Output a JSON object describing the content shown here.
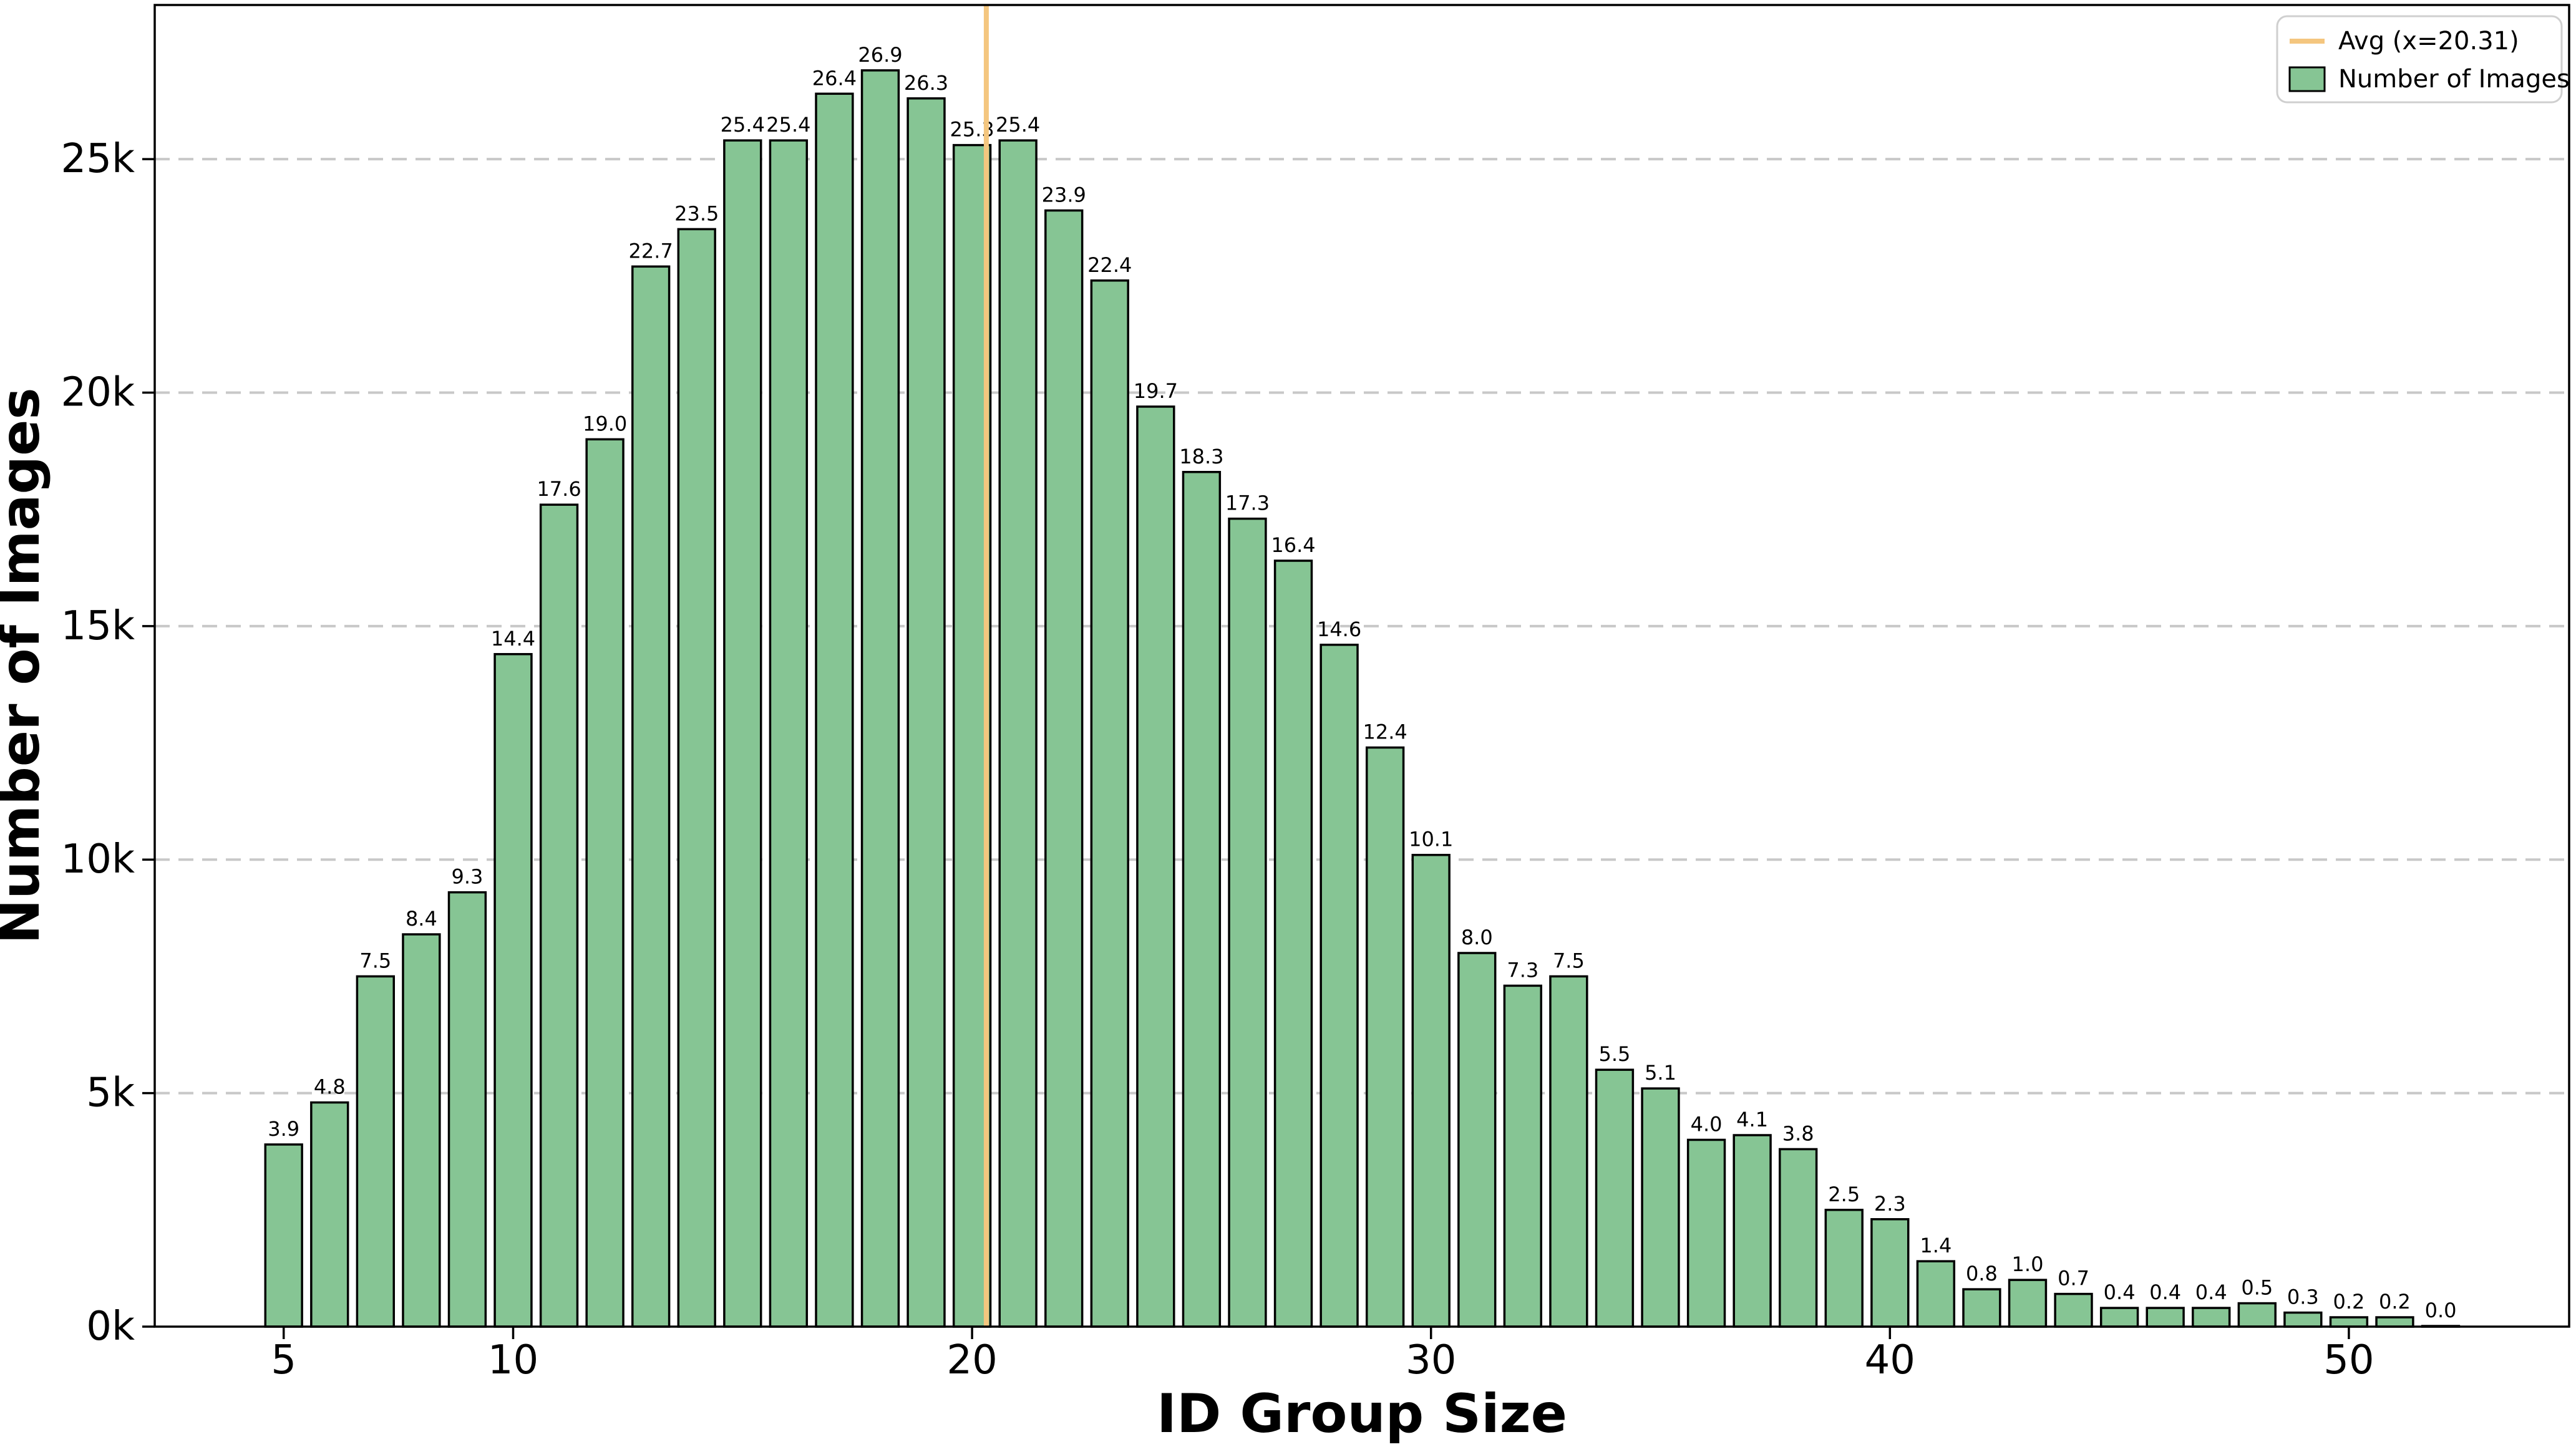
{
  "figure": {
    "background": "#ffffff",
    "colors": {
      "bar_fill": "#86c594",
      "bar_edge": "#000000",
      "avg_line": "#f4c67f",
      "grid": "#c8c8c8",
      "legend_border": "#cfcfcf",
      "text": "#000000"
    }
  },
  "chart_data": {
    "type": "bar",
    "title": "",
    "xlabel": "ID Group Size",
    "ylabel": "Number of Images",
    "x": [
      5,
      6,
      7,
      8,
      9,
      10,
      11,
      12,
      13,
      14,
      15,
      16,
      17,
      18,
      19,
      20,
      21,
      22,
      23,
      24,
      25,
      26,
      27,
      28,
      29,
      30,
      31,
      32,
      33,
      34,
      35,
      36,
      37,
      38,
      39,
      40,
      41,
      42,
      43,
      44,
      45,
      46,
      47,
      48,
      49,
      50,
      51,
      52
    ],
    "values_thousands": [
      3.9,
      4.8,
      7.5,
      8.4,
      9.3,
      14.4,
      17.6,
      19.0,
      22.7,
      23.5,
      25.4,
      25.4,
      26.4,
      26.9,
      26.3,
      25.3,
      25.4,
      23.9,
      22.4,
      19.7,
      18.3,
      17.3,
      16.4,
      14.6,
      12.4,
      10.1,
      8.0,
      7.3,
      7.5,
      5.5,
      5.1,
      4.0,
      4.1,
      3.8,
      2.5,
      2.3,
      1.4,
      0.8,
      1.0,
      0.7,
      0.4,
      0.4,
      0.4,
      0.5,
      0.3,
      0.2,
      0.2,
      0.0
    ],
    "bar_labels": [
      "3.9",
      "4.8",
      "7.5",
      "8.4",
      "9.3",
      "14.4",
      "17.6",
      "19.0",
      "22.7",
      "23.5",
      "25.4",
      "25.4",
      "26.4",
      "26.9",
      "26.3",
      "25.3",
      "25.4",
      "23.9",
      "22.4",
      "19.7",
      "18.3",
      "17.3",
      "16.4",
      "14.6",
      "12.4",
      "10.1",
      "8.0",
      "7.3",
      "7.5",
      "5.5",
      "5.1",
      "4.0",
      "4.1",
      "3.8",
      "2.5",
      "2.3",
      "1.4",
      "0.8",
      "1.0",
      "0.7",
      "0.4",
      "0.4",
      "0.4",
      "0.5",
      "0.3",
      "0.2",
      "0.2",
      "0.0"
    ],
    "y_unit": "k",
    "xticks": [
      {
        "value": 5,
        "label": "5"
      },
      {
        "value": 10,
        "label": "10"
      },
      {
        "value": 20,
        "label": "20"
      },
      {
        "value": 30,
        "label": "30"
      },
      {
        "value": 40,
        "label": "40"
      },
      {
        "value": 50,
        "label": "50"
      }
    ],
    "yticks": [
      {
        "value": 0,
        "label": "0k"
      },
      {
        "value": 5,
        "label": "5k"
      },
      {
        "value": 10,
        "label": "10k"
      },
      {
        "value": 15,
        "label": "15k"
      },
      {
        "value": 20,
        "label": "20k"
      },
      {
        "value": 25,
        "label": "25k"
      }
    ],
    "xlim": [
      2.19,
      54.8
    ],
    "ylim_thousands": [
      0,
      28.3
    ],
    "grid": {
      "axis": "y",
      "style": "dashed"
    },
    "avg_line": {
      "x": 20.31
    },
    "legend": {
      "position": "upper right",
      "items": [
        {
          "label": "Avg (x=20.31)",
          "swatch": "line",
          "color": "#f4c67f"
        },
        {
          "label": "Number of Images",
          "swatch": "patch",
          "color": "#86c594"
        }
      ]
    }
  }
}
